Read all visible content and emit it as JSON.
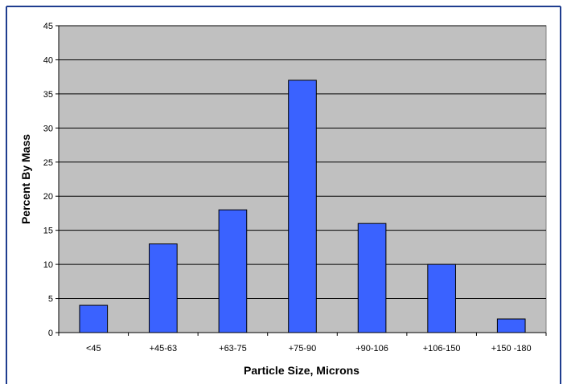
{
  "chart_data": {
    "type": "bar",
    "title": "",
    "xlabel": "Particle Size, Microns",
    "ylabel": "Percent By Mass",
    "categories": [
      "<45",
      "+45-63",
      "+63-75",
      "+75-90",
      "+90-106",
      "+106-150",
      "+150 -180"
    ],
    "values": [
      4,
      13,
      18,
      37,
      16,
      10,
      2
    ],
    "ylim": [
      0,
      45
    ],
    "yticks": [
      0,
      5,
      10,
      15,
      20,
      25,
      30,
      35,
      40,
      45
    ],
    "grid": true,
    "legend": "none",
    "colors": {
      "bar": "#3a62ff",
      "plot_background": "#c0c0c0",
      "frame_border": "#1f3d8f",
      "gridline": "#000000"
    }
  }
}
